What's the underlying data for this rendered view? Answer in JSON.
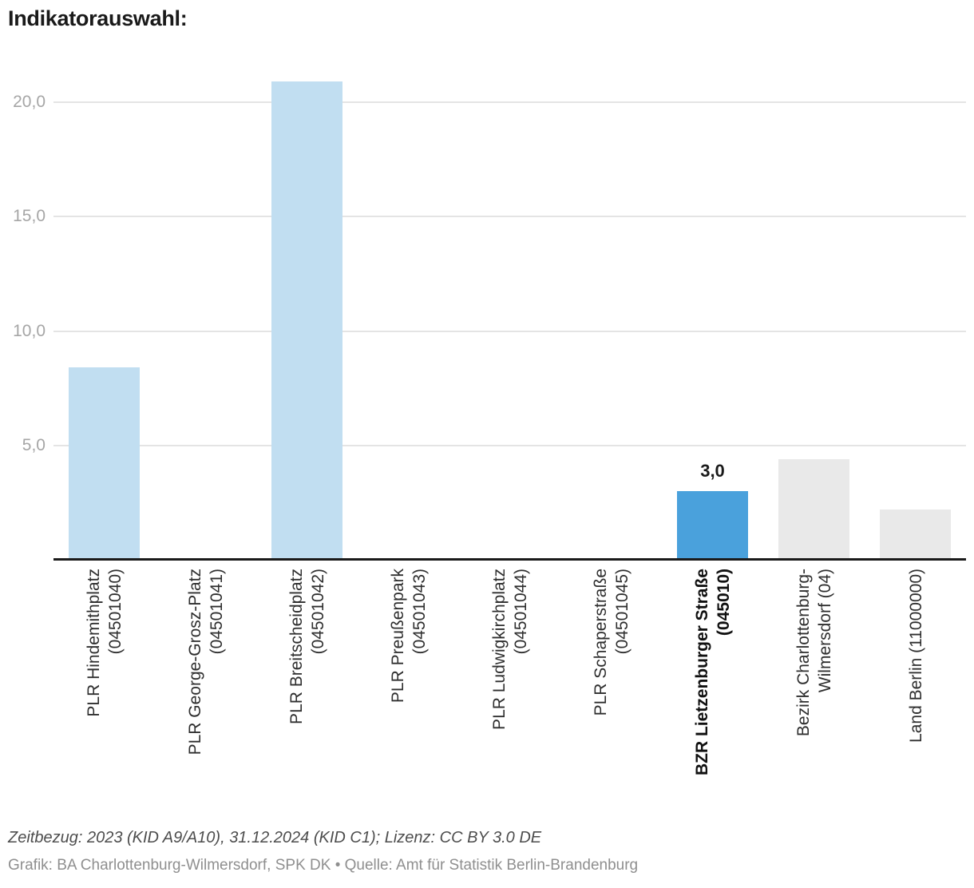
{
  "chart_data": {
    "type": "bar",
    "title": "Indikatorauswahl:",
    "categories": [
      {
        "lines": [
          "PLR Hindemithplatz",
          "(04501040)"
        ],
        "bold": false
      },
      {
        "lines": [
          "PLR George-Grosz-Platz",
          "(04501041)"
        ],
        "bold": false
      },
      {
        "lines": [
          "PLR Breitscheidplatz",
          "(04501042)"
        ],
        "bold": false
      },
      {
        "lines": [
          "PLR Preußenpark",
          "(04501043)"
        ],
        "bold": false
      },
      {
        "lines": [
          "PLR Ludwigkirchplatz",
          "(04501044)"
        ],
        "bold": false
      },
      {
        "lines": [
          "PLR Schaperstraße",
          "(04501045)"
        ],
        "bold": false
      },
      {
        "lines": [
          "BZR Lietzenburger Straße",
          "(045010)"
        ],
        "bold": true
      },
      {
        "lines": [
          "Bezirk Charlottenburg-",
          "Wilmersdorf (04)"
        ],
        "bold": false
      },
      {
        "lines": [
          "Land Berlin (11000000)"
        ],
        "bold": false
      }
    ],
    "values": [
      8.4,
      0,
      20.9,
      0,
      0,
      0,
      3.0,
      4.4,
      2.2
    ],
    "bar_value_labels": [
      "",
      "",
      "",
      "",
      "",
      "",
      "3,0",
      "",
      ""
    ],
    "bar_roles": [
      "plr",
      "plr",
      "plr",
      "plr",
      "plr",
      "plr",
      "highlight",
      "reference",
      "reference"
    ],
    "colors": {
      "plr": "#c1def1",
      "highlight": "#4aa1dc",
      "reference": "#e9e9e9"
    },
    "y_ticks": [
      {
        "value": 5,
        "label": "5,0"
      },
      {
        "value": 10,
        "label": "10,0"
      },
      {
        "value": 15,
        "label": "15,0"
      },
      {
        "value": 20,
        "label": "20,0"
      }
    ],
    "ylim": [
      0,
      22.4
    ],
    "grid": true,
    "legend": "none",
    "xlabel": "",
    "ylabel": ""
  },
  "footer": {
    "line1": "Zeitbezug: 2023 (KID A9/A10), 31.12.2024 (KID C1); Lizenz: CC BY 3.0 DE",
    "line2": "Grafik: BA Charlottenburg-Wilmersdorf, SPK DK • Quelle: Amt für Statistik Berlin-Brandenburg"
  }
}
